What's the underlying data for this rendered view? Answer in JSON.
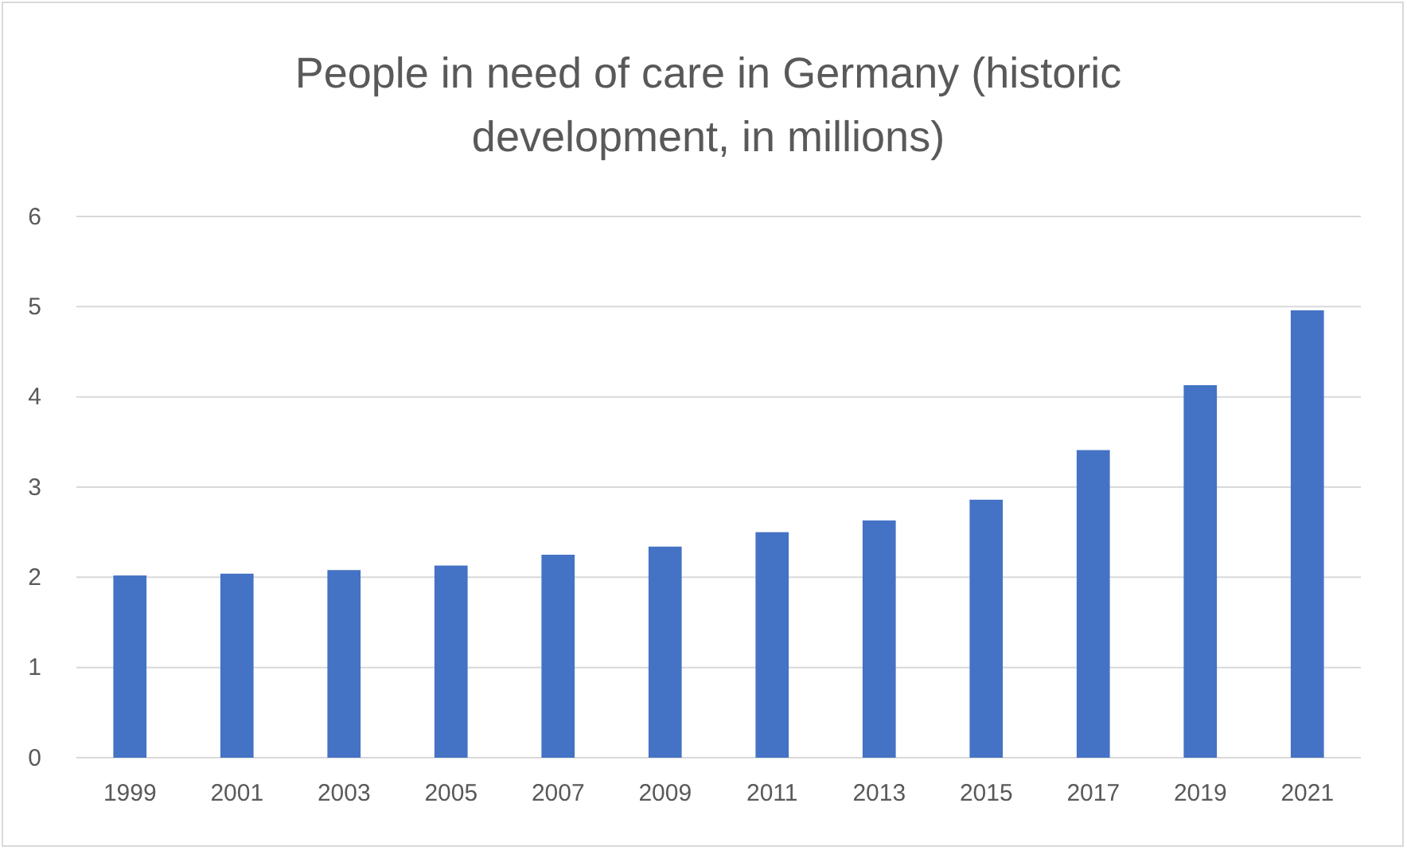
{
  "chart_data": {
    "type": "bar",
    "title": "People in need of care in Germany (historic development, in millions)",
    "categories": [
      "1999",
      "2001",
      "2003",
      "2005",
      "2007",
      "2009",
      "2011",
      "2013",
      "2015",
      "2017",
      "2019",
      "2021"
    ],
    "values": [
      2.02,
      2.04,
      2.08,
      2.13,
      2.25,
      2.34,
      2.5,
      2.63,
      2.86,
      3.41,
      4.13,
      4.96
    ],
    "color": "#4472c4",
    "ylim": [
      0,
      6
    ],
    "yticks": [
      0,
      1,
      2,
      3,
      4,
      5,
      6
    ],
    "grid": "y"
  }
}
